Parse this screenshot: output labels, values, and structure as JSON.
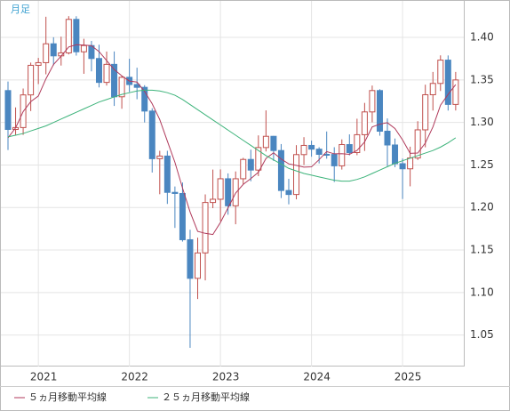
{
  "chart_data": {
    "type": "candlestick",
    "period_label": "月足",
    "categories": [
      null,
      null,
      null,
      null,
      "2021",
      null,
      null,
      null,
      null,
      null,
      null,
      null,
      null,
      null,
      null,
      null,
      "2022",
      null,
      null,
      null,
      null,
      null,
      null,
      null,
      null,
      null,
      null,
      null,
      "2023",
      null,
      null,
      null,
      null,
      null,
      null,
      null,
      null,
      null,
      null,
      null,
      "2024",
      null,
      null,
      null,
      null,
      null,
      null,
      null,
      null,
      null,
      null,
      null,
      "2025",
      null,
      null,
      null,
      null,
      null,
      null,
      null
    ],
    "open": [
      1.3375,
      1.2918,
      1.294,
      1.3324,
      1.3672,
      1.3703,
      1.3925,
      1.3783,
      1.3818,
      1.4212,
      1.3831,
      1.3904,
      1.3752,
      1.3471,
      1.3683,
      1.3302,
      1.3531,
      1.3446,
      1.3413,
      1.3134,
      1.2574,
      1.2605,
      1.2178,
      1.2165,
      1.1621,
      1.1167,
      1.1466,
      1.2059,
      1.2097,
      1.2338,
      1.202,
      1.2338,
      1.2565,
      1.244,
      1.2705,
      1.2837,
      1.267,
      1.22,
      1.2153,
      1.2622,
      1.273,
      1.2686,
      1.2625,
      1.2624,
      1.249,
      1.274,
      1.2646,
      1.2856,
      1.3124,
      1.3375,
      1.2897,
      1.2735,
      1.2515,
      1.2455,
      1.2582,
      1.2913,
      1.3326,
      1.3459,
      1.3733,
      1.3212
    ],
    "high": [
      1.3482,
      1.3177,
      1.3399,
      1.3704,
      1.3759,
      1.4243,
      1.4002,
      1.4009,
      1.425,
      1.4249,
      1.3984,
      1.3959,
      1.3914,
      1.3834,
      1.3835,
      1.3548,
      1.3749,
      1.3644,
      1.3438,
      1.3167,
      1.2667,
      1.2667,
      1.2247,
      1.2294,
      1.1738,
      1.1646,
      1.2154,
      1.2446,
      1.2448,
      1.2401,
      1.2424,
      1.2584,
      1.268,
      1.2848,
      1.3142,
      1.2842,
      1.2746,
      1.2337,
      1.2733,
      1.2827,
      1.2786,
      1.2709,
      1.2894,
      1.2709,
      1.2801,
      1.286,
      1.3044,
      1.323,
      1.3434,
      1.3391,
      1.3048,
      1.2811,
      1.2576,
      1.2715,
      1.3015,
      1.3444,
      1.3594,
      1.3789,
      1.3788,
      1.3594
    ],
    "low": [
      1.2676,
      1.2855,
      1.2854,
      1.3134,
      1.3451,
      1.3566,
      1.3671,
      1.3669,
      1.38,
      1.3786,
      1.3572,
      1.3601,
      1.3412,
      1.3434,
      1.3194,
      1.3161,
      1.3359,
      1.3273,
      1.3,
      1.2411,
      1.2156,
      1.2042,
      1.176,
      1.1599,
      1.035,
      1.0924,
      1.1143,
      1.1992,
      1.1841,
      1.1915,
      1.1803,
      1.2275,
      1.2308,
      1.2369,
      1.2659,
      1.2548,
      1.2111,
      1.2037,
      1.2096,
      1.25,
      1.2597,
      1.2518,
      1.2574,
      1.23,
      1.2446,
      1.2613,
      1.2615,
      1.2665,
      1.3002,
      1.2844,
      1.2487,
      1.2474,
      1.21,
      1.2249,
      1.2559,
      1.2708,
      1.314,
      1.337,
      1.314,
      1.3141
    ],
    "close": [
      1.2918,
      1.294,
      1.3324,
      1.3672,
      1.3703,
      1.3925,
      1.3783,
      1.3818,
      1.4212,
      1.3831,
      1.3904,
      1.3752,
      1.3471,
      1.3683,
      1.3302,
      1.3531,
      1.3446,
      1.3413,
      1.3134,
      1.2574,
      1.2605,
      1.2178,
      1.2165,
      1.1621,
      1.1167,
      1.1466,
      1.2059,
      1.2097,
      1.2338,
      1.202,
      1.2338,
      1.2565,
      1.244,
      1.2705,
      1.2837,
      1.267,
      1.22,
      1.2153,
      1.2622,
      1.273,
      1.2686,
      1.2625,
      1.2624,
      1.249,
      1.274,
      1.2646,
      1.2856,
      1.3124,
      1.3375,
      1.2897,
      1.2735,
      1.2515,
      1.2455,
      1.2582,
      1.2913,
      1.3326,
      1.3459,
      1.3733,
      1.3212,
      1.35
    ],
    "up_color": "#c0504d",
    "down_color": "#4a86c0",
    "series": [
      {
        "name": "５ヵ月移動平均線",
        "color": "#b03a5b",
        "values": [
          1.2819,
          1.2936,
          1.3128,
          1.3245,
          1.3311,
          1.3513,
          1.3681,
          1.378,
          1.3888,
          1.3914,
          1.391,
          1.3903,
          1.3834,
          1.3728,
          1.3622,
          1.3548,
          1.3487,
          1.3475,
          1.3365,
          1.322,
          1.3034,
          1.2781,
          1.2531,
          1.2229,
          1.1947,
          1.1719,
          1.1696,
          1.1682,
          1.1825,
          1.1996,
          1.217,
          1.2272,
          1.234,
          1.2414,
          1.2577,
          1.2643,
          1.257,
          1.2513,
          1.2496,
          1.2475,
          1.2478,
          1.2563,
          1.2657,
          1.2631,
          1.2633,
          1.2625,
          1.2671,
          1.2771,
          1.2948,
          1.298,
          1.2997,
          1.2929,
          1.2795,
          1.2637,
          1.264,
          1.2758,
          1.2947,
          1.3203,
          1.3329,
          1.3446
        ]
      },
      {
        "name": "２５ヵ月移動平均線",
        "color": "#3cb37a",
        "values": [
          1.283,
          1.285,
          1.287,
          1.29,
          1.293,
          1.296,
          1.3,
          1.304,
          1.308,
          1.312,
          1.316,
          1.32,
          1.324,
          1.327,
          1.33,
          1.333,
          1.335,
          1.337,
          1.338,
          1.338,
          1.337,
          1.335,
          1.332,
          1.327,
          1.321,
          1.315,
          1.309,
          1.303,
          1.297,
          1.291,
          1.285,
          1.279,
          1.273,
          1.267,
          1.261,
          1.256,
          1.251,
          1.246,
          1.243,
          1.24,
          1.238,
          1.236,
          1.234,
          1.232,
          1.231,
          1.231,
          1.233,
          1.236,
          1.24,
          1.244,
          1.248,
          1.252,
          1.255,
          1.258,
          1.261,
          1.264,
          1.267,
          1.271,
          1.276,
          1.282
        ]
      }
    ],
    "ylim": [
      1.013,
      1.444
    ],
    "yticks": [
      1.05,
      {
        "value": 1.1,
        "label": "1.10"
      },
      1.15,
      {
        "value": 1.2,
        "label": "1.20"
      },
      1.25,
      {
        "value": 1.3,
        "label": "1.30"
      },
      1.35,
      {
        "value": 1.4,
        "label": "1.40"
      }
    ],
    "grid": true
  }
}
